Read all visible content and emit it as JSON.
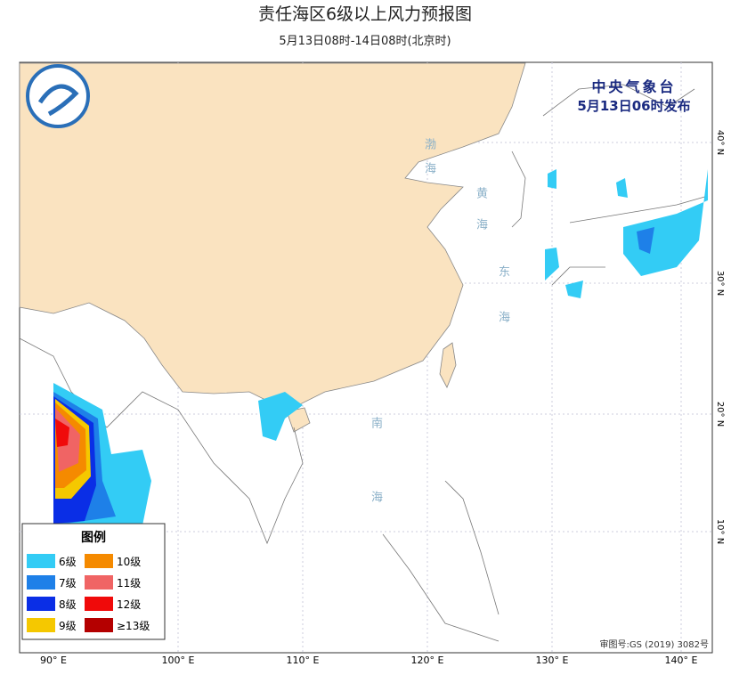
{
  "header": {
    "title": "责任海区6级以上风力预报图",
    "subtitle": "5月13日08时-14日08时(北京时)"
  },
  "issuer": {
    "name": "中央气象台",
    "time": "5月13日06时发布"
  },
  "legend": {
    "title": "图例",
    "items": [
      {
        "label": "6级",
        "color": "#33ccf5"
      },
      {
        "label": "10级",
        "color": "#f58a00"
      },
      {
        "label": "7级",
        "color": "#1e80e8"
      },
      {
        "label": "11级",
        "color": "#f06464"
      },
      {
        "label": "8级",
        "color": "#0a2ee6"
      },
      {
        "label": "12级",
        "color": "#f00a0a"
      },
      {
        "label": "9级",
        "color": "#f5c800"
      },
      {
        "label": "≥13级",
        "color": "#b40000"
      }
    ]
  },
  "seas": [
    "渤海",
    "黄海",
    "东海",
    "南海"
  ],
  "longitudes": [
    "90° E",
    "100° E",
    "110° E",
    "120° E",
    "130° E",
    "140° E"
  ],
  "latitudes": [
    "40° N",
    "30° N",
    "20° N",
    "10° N"
  ],
  "approval": "审图号:GS (2019) 3082号"
}
